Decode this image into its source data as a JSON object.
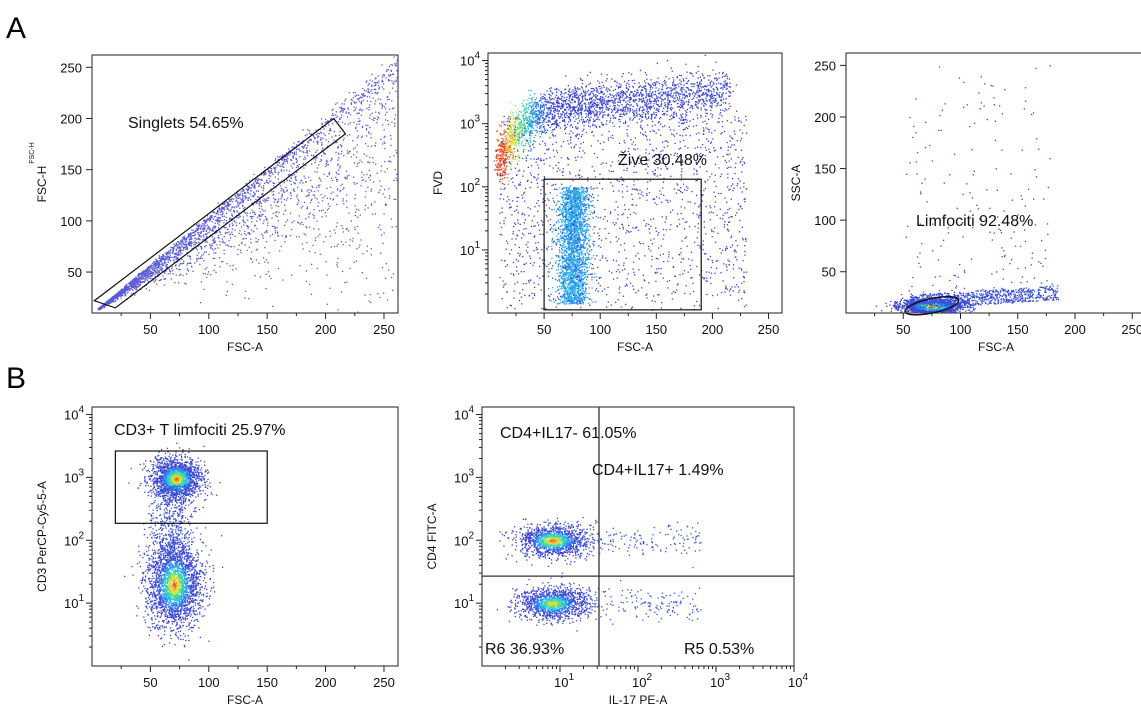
{
  "figure": {
    "panel_a": "A",
    "panel_b": "B"
  },
  "chart_data": [
    {
      "type": "scatter",
      "xlabel": "FSC-A",
      "ylabel": "FSC-H",
      "ylabel_small": "FSC-H",
      "xlim": [
        0,
        262
      ],
      "ylim": [
        10,
        262
      ],
      "xticks": [
        "50",
        "100",
        "150",
        "200",
        "250"
      ],
      "yticks": [
        "50",
        "100",
        "150",
        "200",
        "250"
      ],
      "gate": {
        "label": "Singlets 54.65%",
        "shape": "polygon",
        "points": [
          [
            2,
            22
          ],
          [
            20,
            15
          ],
          [
            217,
            185
          ],
          [
            207,
            200
          ]
        ]
      },
      "population": {
        "description": "diagonal singlet band, dense near x=5-100",
        "color": "#5b5bd6"
      }
    },
    {
      "type": "scatter",
      "xlabel": "FSC-A",
      "ylabel": "FVD",
      "xlim": [
        0,
        262
      ],
      "ylog": true,
      "xticks": [
        "50",
        "100",
        "150",
        "200",
        "250"
      ],
      "yticks": [
        "10",
        "10",
        "10",
        "10"
      ],
      "ytick_exp": [
        "1",
        "2",
        "3",
        "4"
      ],
      "gate": {
        "label": "Žive 30.48%",
        "shape": "rectangle",
        "x": [
          50,
          190
        ],
        "y_decades": [
          0.05,
          2.12
        ]
      },
      "population": {
        "description": "high-FVD arc (dead) and live column at FSC-A ~75",
        "color": "#3355dd"
      }
    },
    {
      "type": "scatter",
      "xlabel": "FSC-A",
      "ylabel": "SSC-A",
      "xlim": [
        0,
        262
      ],
      "ylim": [
        10,
        262
      ],
      "xticks": [
        "50",
        "100",
        "150",
        "200",
        "250"
      ],
      "yticks": [
        "50",
        "100",
        "150",
        "200",
        "250"
      ],
      "gate": {
        "label": "Limfociti 92.48%",
        "shape": "ellipse",
        "center": [
          75,
          17
        ],
        "radii": [
          24,
          7
        ]
      },
      "population": {
        "description": "compact lymphocyte cluster near FSC-A 75, SSC-A 17",
        "color": "#3355dd"
      }
    },
    {
      "type": "scatter",
      "xlabel": "FSC-A",
      "ylabel": "CD3 PerCP-Cy5-5-A",
      "xlim": [
        0,
        262
      ],
      "ylog": true,
      "xticks": [
        "50",
        "100",
        "150",
        "200",
        "250"
      ],
      "yticks": [
        "10",
        "10",
        "10",
        "10"
      ],
      "ytick_exp": [
        "1",
        "2",
        "3",
        "4"
      ],
      "gate": {
        "label": "CD3+ T limfociti 25.97%",
        "shape": "rectangle",
        "x": [
          20,
          150
        ],
        "y_decades": [
          2.27,
          3.42
        ]
      },
      "population": {
        "description": "two clusters at FSC-A ~70: CD3 ~10^3 and CD3 ~10^1.3",
        "color": "#3355dd"
      }
    },
    {
      "type": "scatter",
      "xlabel": "IL-17 PE-A",
      "ylabel": "CD4 FITC-A",
      "xlog": true,
      "ylog": true,
      "xticks": [
        "10",
        "10",
        "10",
        "10"
      ],
      "xtick_exp": [
        "1",
        "2",
        "3",
        "4"
      ],
      "yticks": [
        "10",
        "10",
        "10",
        "10"
      ],
      "ytick_exp": [
        "1",
        "2",
        "3",
        "4"
      ],
      "quadrant_divider": {
        "x_decade": 1.5,
        "y_decade": 1.43
      },
      "quadrants": [
        {
          "label": "CD4+IL17- 61.05%"
        },
        {
          "label": "CD4+IL17+ 1.49%"
        },
        {
          "label": "R6 36.93%"
        },
        {
          "label": "R5 0.53%"
        }
      ],
      "population": {
        "description": "clusters at IL-17 ~10^0.9 with CD4 ~10^2 and ~10^1",
        "color": "#3355dd"
      }
    }
  ]
}
